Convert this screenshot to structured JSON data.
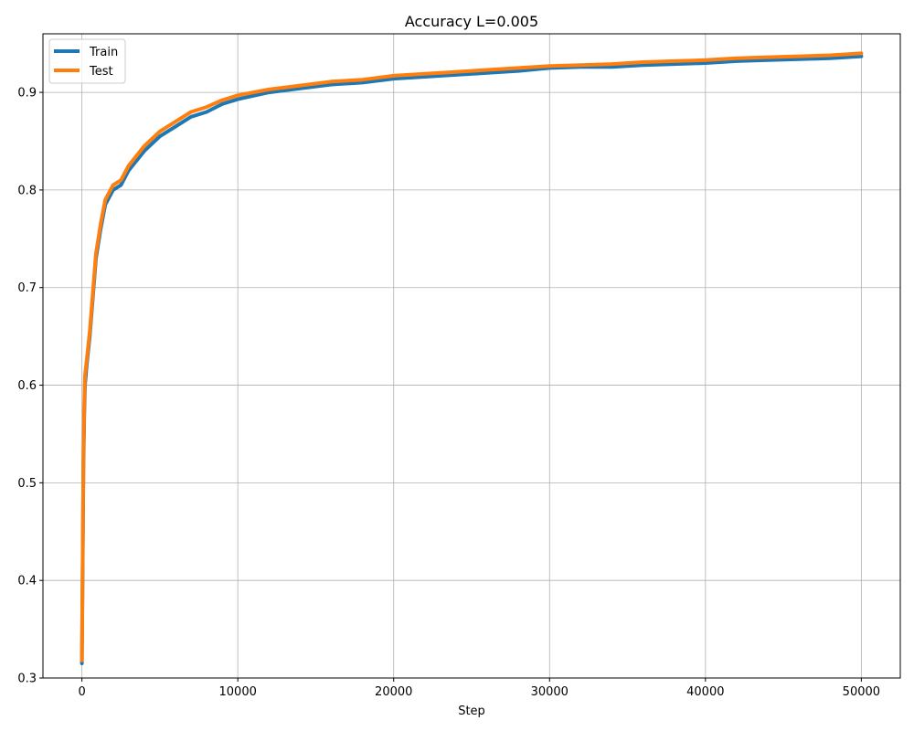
{
  "chart_data": {
    "type": "line",
    "title": "Accuracy L=0.005",
    "xlabel": "Step",
    "ylabel": "",
    "xlim": [
      -2500,
      52500
    ],
    "ylim": [
      0.3,
      0.96
    ],
    "xticks": [
      0,
      10000,
      20000,
      30000,
      40000,
      50000
    ],
    "yticks": [
      0.3,
      0.4,
      0.5,
      0.6,
      0.7,
      0.8,
      0.9
    ],
    "xtick_labels": [
      "0",
      "10000",
      "20000",
      "30000",
      "40000",
      "50000"
    ],
    "ytick_labels": [
      "0.3",
      "0.4",
      "0.5",
      "0.6",
      "0.7",
      "0.8",
      "0.9"
    ],
    "grid": true,
    "legend_position": "upper-left",
    "series": [
      {
        "name": "Train",
        "color": "#1f77b4",
        "x": [
          0,
          50,
          100,
          150,
          200,
          300,
          400,
          500,
          700,
          900,
          1200,
          1500,
          2000,
          2500,
          3000,
          4000,
          5000,
          6000,
          7000,
          8000,
          9000,
          10000,
          12000,
          14000,
          16000,
          18000,
          20000,
          22000,
          24000,
          26000,
          28000,
          30000,
          32000,
          34000,
          36000,
          38000,
          40000,
          42000,
          44000,
          46000,
          48000,
          50000
        ],
        "values": [
          0.315,
          0.42,
          0.52,
          0.57,
          0.6,
          0.62,
          0.635,
          0.65,
          0.69,
          0.73,
          0.76,
          0.785,
          0.8,
          0.805,
          0.82,
          0.84,
          0.855,
          0.865,
          0.875,
          0.88,
          0.888,
          0.893,
          0.9,
          0.904,
          0.908,
          0.91,
          0.914,
          0.916,
          0.918,
          0.92,
          0.922,
          0.925,
          0.926,
          0.926,
          0.928,
          0.929,
          0.93,
          0.932,
          0.933,
          0.934,
          0.935,
          0.937
        ]
      },
      {
        "name": "Test",
        "color": "#ff7f0e",
        "x": [
          0,
          50,
          100,
          150,
          200,
          300,
          400,
          500,
          700,
          900,
          1200,
          1500,
          2000,
          2500,
          3000,
          4000,
          5000,
          6000,
          7000,
          8000,
          9000,
          10000,
          12000,
          14000,
          16000,
          18000,
          20000,
          22000,
          24000,
          26000,
          28000,
          30000,
          32000,
          34000,
          36000,
          38000,
          40000,
          42000,
          44000,
          46000,
          48000,
          50000
        ],
        "values": [
          0.318,
          0.43,
          0.53,
          0.58,
          0.61,
          0.625,
          0.64,
          0.655,
          0.695,
          0.735,
          0.765,
          0.79,
          0.805,
          0.81,
          0.825,
          0.845,
          0.86,
          0.87,
          0.88,
          0.885,
          0.892,
          0.897,
          0.903,
          0.907,
          0.911,
          0.913,
          0.917,
          0.919,
          0.921,
          0.923,
          0.925,
          0.927,
          0.928,
          0.929,
          0.931,
          0.932,
          0.933,
          0.935,
          0.936,
          0.937,
          0.938,
          0.94
        ]
      }
    ]
  }
}
